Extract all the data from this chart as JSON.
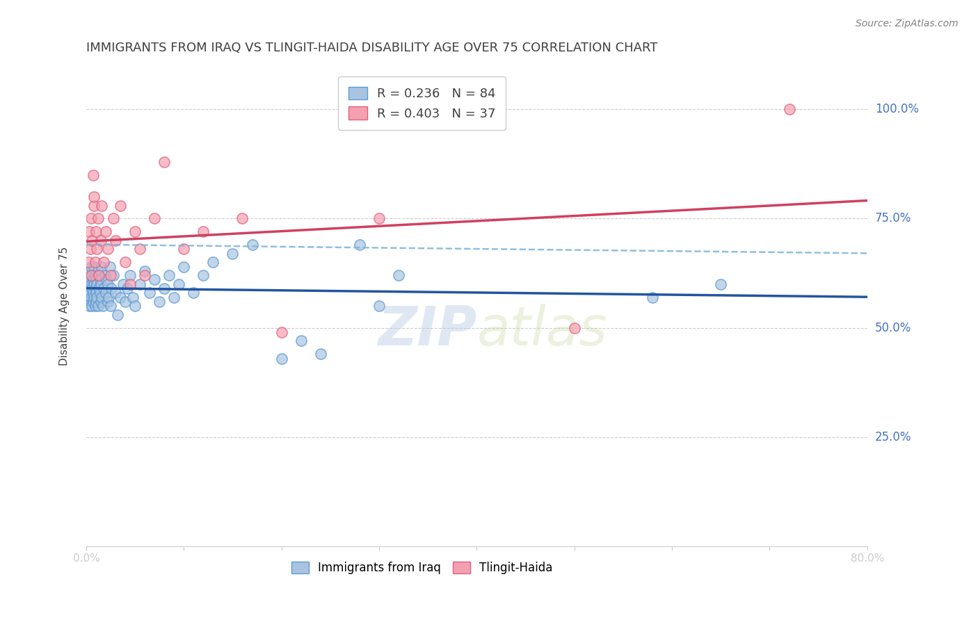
{
  "title": "IMMIGRANTS FROM IRAQ VS TLINGIT-HAIDA DISABILITY AGE OVER 75 CORRELATION CHART",
  "source": "Source: ZipAtlas.com",
  "ylabel": "Disability Age Over 75",
  "y_tick_labels": [
    "25.0%",
    "50.0%",
    "75.0%",
    "100.0%"
  ],
  "y_tick_values": [
    0.25,
    0.5,
    0.75,
    1.0
  ],
  "x_lim": [
    0.0,
    0.8
  ],
  "y_lim": [
    0.0,
    1.1
  ],
  "watermark_zip": "ZIP",
  "watermark_atlas": "atlas",
  "series_iraq": {
    "name": "Immigrants from Iraq",
    "color": "#a8c4e0",
    "edge_color": "#5b9bd5",
    "trend_color": "#2255a0",
    "R": 0.236,
    "N": 84,
    "x": [
      0.001,
      0.002,
      0.002,
      0.003,
      0.003,
      0.003,
      0.004,
      0.004,
      0.004,
      0.005,
      0.005,
      0.005,
      0.005,
      0.006,
      0.006,
      0.006,
      0.007,
      0.007,
      0.007,
      0.008,
      0.008,
      0.008,
      0.009,
      0.009,
      0.009,
      0.01,
      0.01,
      0.01,
      0.011,
      0.011,
      0.012,
      0.012,
      0.013,
      0.013,
      0.014,
      0.014,
      0.015,
      0.015,
      0.016,
      0.016,
      0.017,
      0.018,
      0.019,
      0.02,
      0.021,
      0.022,
      0.022,
      0.023,
      0.024,
      0.025,
      0.026,
      0.028,
      0.03,
      0.032,
      0.035,
      0.038,
      0.04,
      0.042,
      0.045,
      0.048,
      0.05,
      0.055,
      0.06,
      0.065,
      0.07,
      0.075,
      0.08,
      0.085,
      0.09,
      0.095,
      0.1,
      0.11,
      0.12,
      0.13,
      0.15,
      0.17,
      0.2,
      0.22,
      0.24,
      0.28,
      0.3,
      0.32,
      0.58,
      0.65
    ],
    "y": [
      0.57,
      0.62,
      0.58,
      0.6,
      0.55,
      0.59,
      0.63,
      0.58,
      0.61,
      0.56,
      0.6,
      0.64,
      0.57,
      0.59,
      0.55,
      0.62,
      0.58,
      0.61,
      0.56,
      0.6,
      0.57,
      0.64,
      0.55,
      0.59,
      0.62,
      0.58,
      0.61,
      0.56,
      0.6,
      0.57,
      0.63,
      0.55,
      0.59,
      0.62,
      0.58,
      0.61,
      0.56,
      0.6,
      0.57,
      0.64,
      0.55,
      0.59,
      0.62,
      0.58,
      0.61,
      0.56,
      0.6,
      0.57,
      0.64,
      0.55,
      0.59,
      0.62,
      0.58,
      0.53,
      0.57,
      0.6,
      0.56,
      0.59,
      0.62,
      0.57,
      0.55,
      0.6,
      0.63,
      0.58,
      0.61,
      0.56,
      0.59,
      0.62,
      0.57,
      0.6,
      0.64,
      0.58,
      0.62,
      0.65,
      0.67,
      0.69,
      0.43,
      0.47,
      0.44,
      0.69,
      0.55,
      0.62,
      0.57,
      0.6
    ]
  },
  "series_tlingit": {
    "name": "Tlingit-Haida",
    "color": "#f4a0b0",
    "edge_color": "#e06080",
    "trend_color": "#d04060",
    "R": 0.403,
    "N": 37,
    "x": [
      0.002,
      0.003,
      0.004,
      0.005,
      0.005,
      0.006,
      0.007,
      0.008,
      0.008,
      0.009,
      0.01,
      0.011,
      0.012,
      0.013,
      0.015,
      0.016,
      0.018,
      0.02,
      0.022,
      0.025,
      0.028,
      0.03,
      0.035,
      0.04,
      0.045,
      0.05,
      0.055,
      0.06,
      0.07,
      0.08,
      0.1,
      0.12,
      0.16,
      0.2,
      0.3,
      0.5,
      0.72
    ],
    "y": [
      0.65,
      0.72,
      0.68,
      0.62,
      0.75,
      0.7,
      0.85,
      0.78,
      0.8,
      0.65,
      0.72,
      0.68,
      0.75,
      0.62,
      0.7,
      0.78,
      0.65,
      0.72,
      0.68,
      0.62,
      0.75,
      0.7,
      0.78,
      0.65,
      0.6,
      0.72,
      0.68,
      0.62,
      0.75,
      0.88,
      0.68,
      0.72,
      0.75,
      0.49,
      0.75,
      0.5,
      1.0
    ]
  },
  "background_color": "#ffffff",
  "grid_color": "#cccccc",
  "tick_label_color": "#4472c4",
  "title_color": "#404040",
  "title_fontsize": 13,
  "axis_label_fontsize": 11,
  "legend_fontsize": 12,
  "source_fontsize": 10
}
